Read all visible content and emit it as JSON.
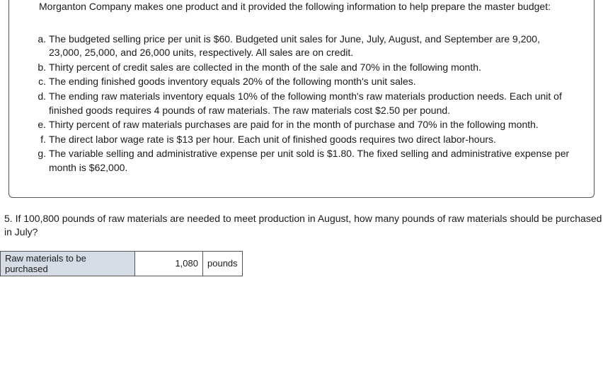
{
  "problem": {
    "intro": "Morganton Company makes one product and it provided the following information to help prepare the master budget:",
    "items": [
      {
        "marker": "a.",
        "text": "The budgeted selling price per unit is $60. Budgeted unit sales for June, July, August, and September are 9,200, 23,000, 25,000, and 26,000 units, respectively. All sales are on credit."
      },
      {
        "marker": "b.",
        "text": "Thirty percent of credit sales are collected in the month of the sale and 70% in the following month."
      },
      {
        "marker": "c.",
        "text": "The ending finished goods inventory equals 20% of the following month's unit sales."
      },
      {
        "marker": "d.",
        "text": "The ending raw materials inventory equals 10% of the following month's raw materials production needs. Each unit of finished goods requires 4 pounds of raw materials. The raw materials cost $2.50 per pound."
      },
      {
        "marker": "e.",
        "text": "Thirty percent of raw materials purchases are paid for in the month of purchase and 70% in the following month."
      },
      {
        "marker": "f.",
        "text": "The direct labor wage rate is $13 per hour. Each unit of finished goods requires two direct labor-hours."
      },
      {
        "marker": "g.",
        "text": "The variable selling and administrative expense per unit sold is $1.80. The fixed selling and administrative expense per month is $62,000."
      }
    ]
  },
  "question": {
    "text": "5. If 100,800 pounds of raw materials are needed to meet production in August, how many pounds of raw materials should be purchased in July?"
  },
  "answer": {
    "label": "Raw materials to be purchased",
    "value": "1,080",
    "unit": "pounds"
  },
  "styles": {
    "label_bg": "#d5dce6",
    "border_color": "#555555",
    "text_color": "#1a1a1a",
    "body_font_size": 14
  }
}
